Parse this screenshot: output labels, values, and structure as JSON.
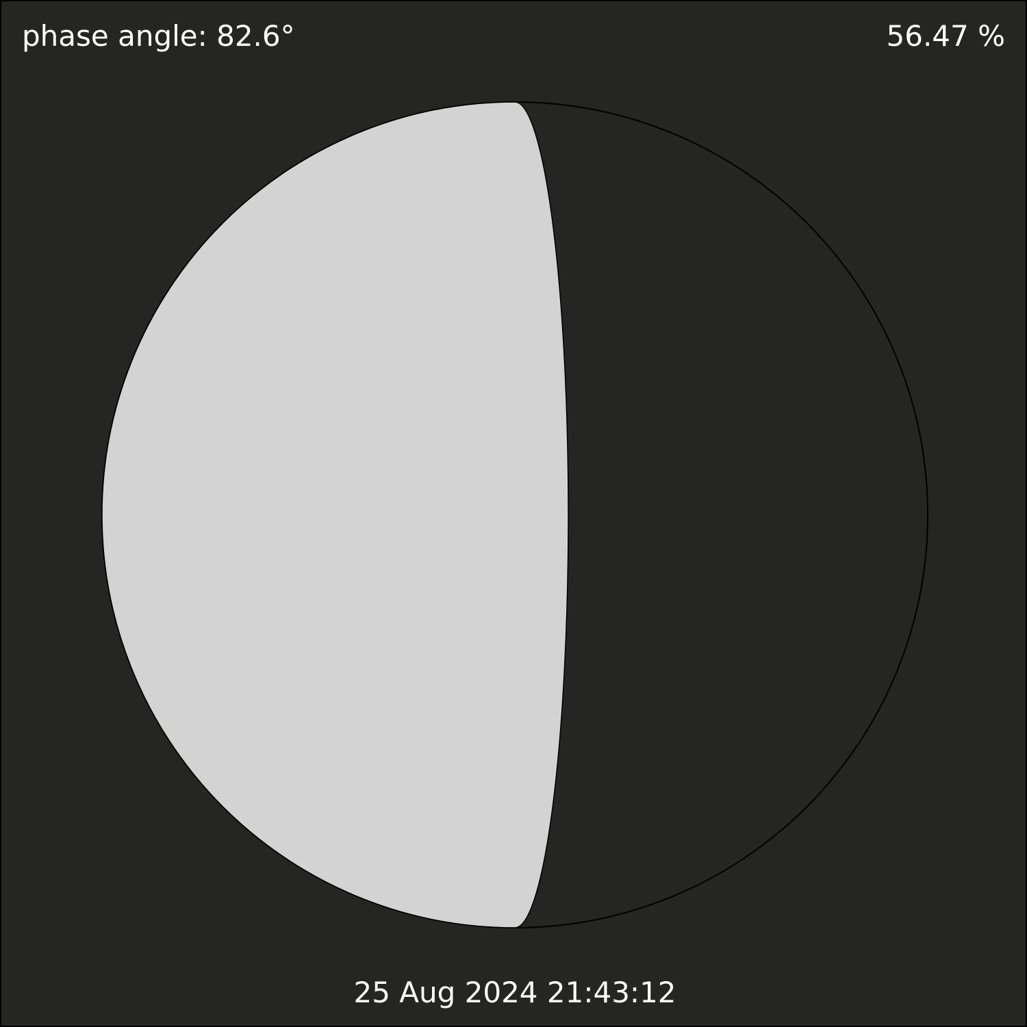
{
  "phase": {
    "phase_angle_text": "phase angle: 82.6°",
    "phase_angle_deg": 82.6,
    "illumination_text": "56.47 %",
    "illumination_fraction": 0.5647,
    "lit_side": "left",
    "datetime_text": "25 Aug 2024 21:43:12"
  },
  "colors": {
    "background": "#252523",
    "lit": "#d3d3d3",
    "outline": "#000000",
    "text": "#ffffff"
  }
}
